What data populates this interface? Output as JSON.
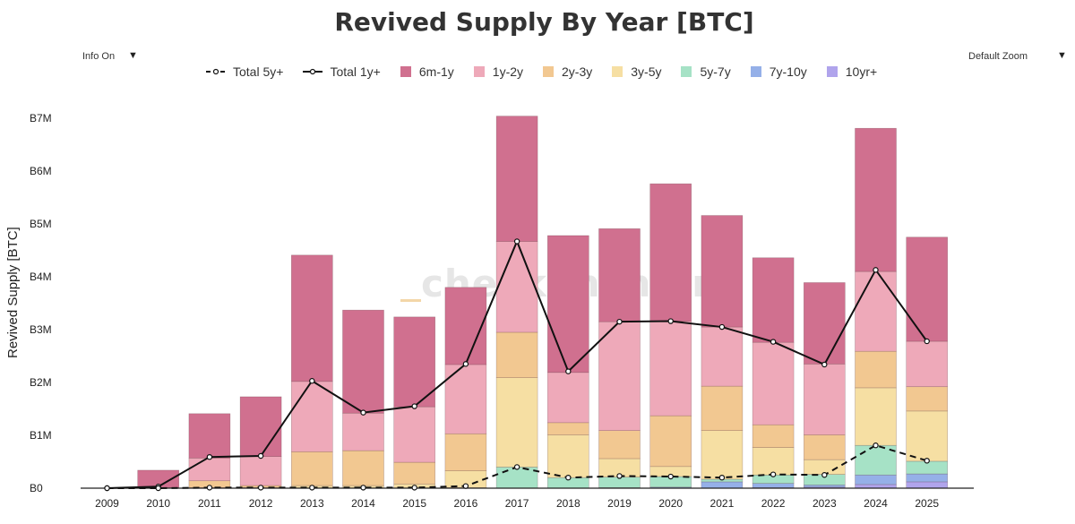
{
  "toolbar": {
    "info_label": "Info On",
    "zoom_label": "Default Zoom",
    "dropdown_arrow": "▼"
  },
  "watermark": "checkonchain",
  "chart_data": {
    "type": "bar",
    "title": "Revived Supply By Year [BTC]",
    "ylabel": "Revived Supply [BTC]",
    "xlabel": "",
    "ylim": [
      0,
      7000000
    ],
    "yticks": [
      0,
      1000000,
      2000000,
      3000000,
      4000000,
      5000000,
      6000000,
      7000000
    ],
    "ytick_labels": [
      "B0",
      "B1M",
      "B2M",
      "B3M",
      "B4M",
      "B5M",
      "B6M",
      "B7M"
    ],
    "categories": [
      "2009",
      "2010",
      "2011",
      "2012",
      "2013",
      "2014",
      "2015",
      "2016",
      "2017",
      "2018",
      "2019",
      "2020",
      "2021",
      "2022",
      "2023",
      "2024",
      "2025"
    ],
    "stacked": true,
    "legend_position": "top-center",
    "series": [
      {
        "name": "10yr+",
        "kind": "bar",
        "color": "#b0a4ec",
        "values": [
          0,
          0,
          0,
          0,
          0,
          0,
          0,
          0,
          0,
          0,
          0,
          0,
          0,
          10000,
          20000,
          70000,
          120000
        ]
      },
      {
        "name": "7y-10y",
        "kind": "bar",
        "color": "#95b0e8",
        "values": [
          0,
          0,
          0,
          0,
          0,
          0,
          0,
          0,
          0,
          0,
          10000,
          20000,
          120000,
          80000,
          40000,
          180000,
          150000
        ]
      },
      {
        "name": "5y-7y",
        "kind": "bar",
        "color": "#a6e2c6",
        "values": [
          0,
          0,
          0,
          0,
          0,
          0,
          0,
          10000,
          400000,
          200000,
          200000,
          200000,
          50000,
          160000,
          200000,
          560000,
          240000
        ]
      },
      {
        "name": "3y-5y",
        "kind": "bar",
        "color": "#f6dfa3",
        "values": [
          0,
          0,
          10000,
          10000,
          50000,
          50000,
          80000,
          320000,
          1690000,
          810000,
          350000,
          190000,
          920000,
          520000,
          280000,
          1090000,
          950000
        ]
      },
      {
        "name": "2y-3y",
        "kind": "bar",
        "color": "#f2c891",
        "values": [
          0,
          0,
          130000,
          40000,
          640000,
          660000,
          410000,
          700000,
          860000,
          230000,
          530000,
          960000,
          840000,
          430000,
          470000,
          690000,
          460000
        ]
      },
      {
        "name": "1y-2y",
        "kind": "bar",
        "color": "#eea9b9",
        "values": [
          0,
          10000,
          430000,
          550000,
          1330000,
          710000,
          1050000,
          1310000,
          1720000,
          950000,
          2060000,
          1790000,
          1120000,
          1560000,
          1340000,
          1510000,
          860000
        ]
      },
      {
        "name": "6m-1y",
        "kind": "bar",
        "color": "#d0708f",
        "values": [
          0,
          330000,
          840000,
          1130000,
          2390000,
          1950000,
          1700000,
          1460000,
          2370000,
          2590000,
          1760000,
          2600000,
          2110000,
          1600000,
          1540000,
          2710000,
          1970000
        ]
      },
      {
        "name": "Total 1y+",
        "kind": "line",
        "color": "#111111",
        "dash": "solid",
        "values": [
          0,
          30000,
          590000,
          610000,
          2030000,
          1430000,
          1550000,
          2350000,
          4670000,
          2210000,
          3150000,
          3160000,
          3050000,
          2770000,
          2340000,
          4130000,
          2780000
        ]
      },
      {
        "name": "Total 5y+",
        "kind": "line",
        "color": "#111111",
        "dash": "dashed",
        "values": [
          0,
          0,
          10000,
          10000,
          10000,
          10000,
          10000,
          40000,
          400000,
          200000,
          230000,
          220000,
          200000,
          260000,
          250000,
          810000,
          520000
        ]
      }
    ],
    "legend_order": [
      "Total 5y+",
      "Total 1y+",
      "6m-1y",
      "1y-2y",
      "2y-3y",
      "3y-5y",
      "5y-7y",
      "7y-10y",
      "10yr+"
    ]
  }
}
